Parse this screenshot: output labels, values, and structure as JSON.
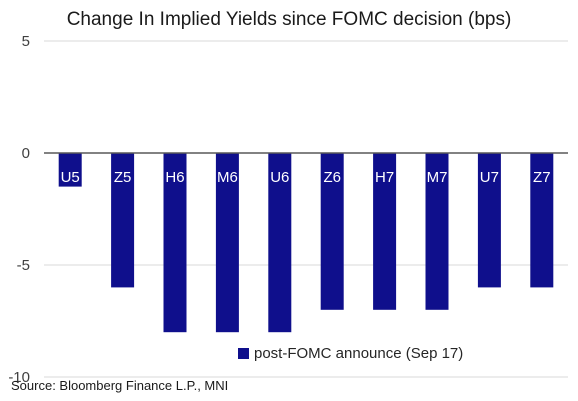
{
  "chart_data": {
    "type": "bar",
    "title": "Change In Implied Yields since FOMC decision (bps)",
    "categories": [
      "U5",
      "Z5",
      "H6",
      "M6",
      "U6",
      "Z6",
      "H7",
      "M7",
      "U7",
      "Z7"
    ],
    "series": [
      {
        "name": "post-FOMC announce (Sep 17)",
        "values": [
          -1.5,
          -6,
          -8,
          -8,
          -8,
          -7,
          -7,
          -7,
          -6,
          -6
        ],
        "color": "#0f0f8c"
      }
    ],
    "ylim": [
      -10,
      5
    ],
    "yticks": [
      "5",
      "0",
      "-5",
      "-10"
    ],
    "grid": true,
    "legend_position": "bottom-center",
    "category_label_color": "#ffffff"
  },
  "source": "Source: Bloomberg Finance L.P., MNI"
}
